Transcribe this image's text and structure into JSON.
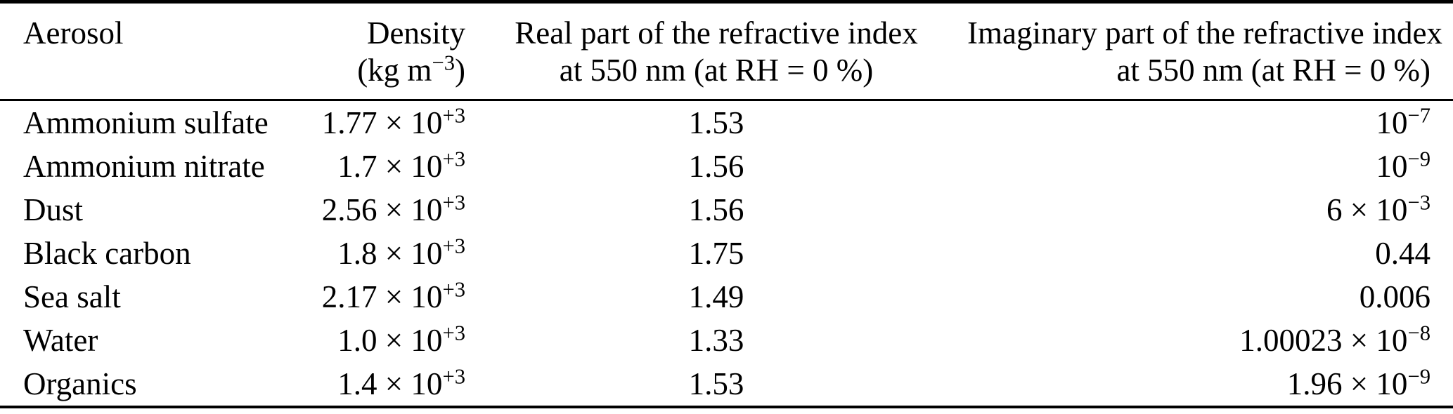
{
  "page": {
    "background_color": "#ffffff",
    "text_color": "#000000",
    "rule_color": "#000000"
  },
  "chart_data": {
    "type": "table",
    "columns": [
      {
        "id": "aerosol",
        "header_line1": "Aerosol",
        "header_line2": "",
        "align": "left"
      },
      {
        "id": "density",
        "header_line1": "Density",
        "header_line2": "(kg m{^−3})",
        "align": "right"
      },
      {
        "id": "real_refractive_index",
        "header_line1": "Real part of the refractive index",
        "header_line2": "at 550 nm (at RH = 0 %)",
        "align": "center"
      },
      {
        "id": "imaginary_refractive_index",
        "header_line1": "Imaginary part of the refractive index",
        "header_line2": "at 550 nm (at RH = 0 %)",
        "align": "right"
      }
    ],
    "rows": [
      {
        "aerosol": "Ammonium sulfate",
        "density": "1.77 × 10{^+3}",
        "real": "1.53",
        "imag": "10{^−7}"
      },
      {
        "aerosol": "Ammonium nitrate",
        "density": "1.7 × 10{^+3}",
        "real": "1.56",
        "imag": "10{^−9}"
      },
      {
        "aerosol": "Dust",
        "density": "2.56 × 10{^+3}",
        "real": "1.56",
        "imag": "6 × 10{^−3}"
      },
      {
        "aerosol": "Black carbon",
        "density": "1.8 × 10{^+3}",
        "real": "1.75",
        "imag": "0.44"
      },
      {
        "aerosol": "Sea salt",
        "density": "2.17 × 10{^+3}",
        "real": "1.49",
        "imag": "0.006"
      },
      {
        "aerosol": "Water",
        "density": "1.0 × 10{^+3}",
        "real": "1.33",
        "imag": "1.00023 × 10{^−8}"
      },
      {
        "aerosol": "Organics",
        "density": "1.4 × 10{^+3}",
        "real": "1.53",
        "imag": "1.96 × 10{^−9}"
      }
    ]
  }
}
